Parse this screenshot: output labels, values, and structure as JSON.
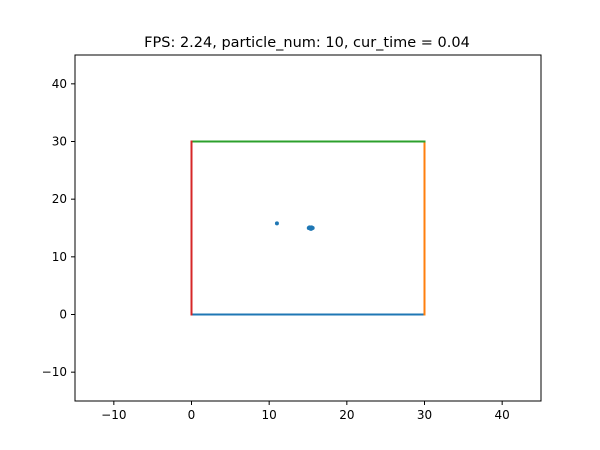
{
  "chart_data": {
    "type": "scatter",
    "title": "FPS: 2.24, particle_num: 10, cur_time = 0.04",
    "xlabel": "",
    "ylabel": "",
    "xlim": [
      -15,
      45
    ],
    "ylim": [
      -15,
      45
    ],
    "xticks": [
      -10,
      0,
      10,
      20,
      30,
      40
    ],
    "yticks": [
      -10,
      0,
      10,
      20,
      30,
      40
    ],
    "xtick_labels": [
      "−10",
      "0",
      "10",
      "20",
      "30",
      "40"
    ],
    "ytick_labels": [
      "−10",
      "0",
      "10",
      "20",
      "30",
      "40"
    ],
    "grid": false,
    "boundary_lines": [
      {
        "x": [
          0,
          30
        ],
        "y": [
          0,
          0
        ],
        "color": "#1f77b4"
      },
      {
        "x": [
          30,
          30
        ],
        "y": [
          0,
          30
        ],
        "color": "#ff7f0e"
      },
      {
        "x": [
          0,
          30
        ],
        "y": [
          30,
          30
        ],
        "color": "#2ca02c"
      },
      {
        "x": [
          0,
          0
        ],
        "y": [
          0,
          30
        ],
        "color": "#d62728"
      }
    ],
    "particles": {
      "color": "#1f77b4",
      "x": [
        11.0,
        15.1,
        15.3,
        15.5,
        15.2,
        15.4,
        15.6,
        15.3,
        15.45,
        15.25
      ],
      "y": [
        15.8,
        15.0,
        14.9,
        15.0,
        15.1,
        14.85,
        15.0,
        15.05,
        15.1,
        14.95
      ]
    }
  }
}
